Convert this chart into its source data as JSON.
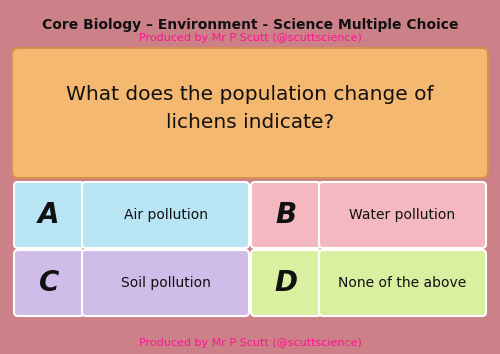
{
  "bg_color": "#cc8088",
  "title_text": "Core Biology – Environment - Science Multiple Choice",
  "subtitle_text": "Produced by Mr P Scutt (@scuttscience)",
  "subtitle_color": "#ff1493",
  "footer_text": "Produced by Mr P Scutt (@scuttscience)",
  "footer_color": "#ff1493",
  "question_text": "What does the population change of\nlichens indicate?",
  "question_box_color_top": "#f7c98a",
  "question_box_color_bot": "#f09050",
  "question_box_edge": "#e09060",
  "question_text_color": "#111111",
  "title_color": "#111111",
  "answers": [
    {
      "letter": "A",
      "text": "Air pollution",
      "color": "#b8e4f4"
    },
    {
      "letter": "B",
      "text": "Water pollution",
      "color": "#f4b8c0"
    },
    {
      "letter": "C",
      "text": "Soil pollution",
      "color": "#d0bce8"
    },
    {
      "letter": "D",
      "text": "None of the above",
      "color": "#d8f0a0"
    }
  ],
  "figsize": [
    5.0,
    3.54
  ],
  "dpi": 100
}
